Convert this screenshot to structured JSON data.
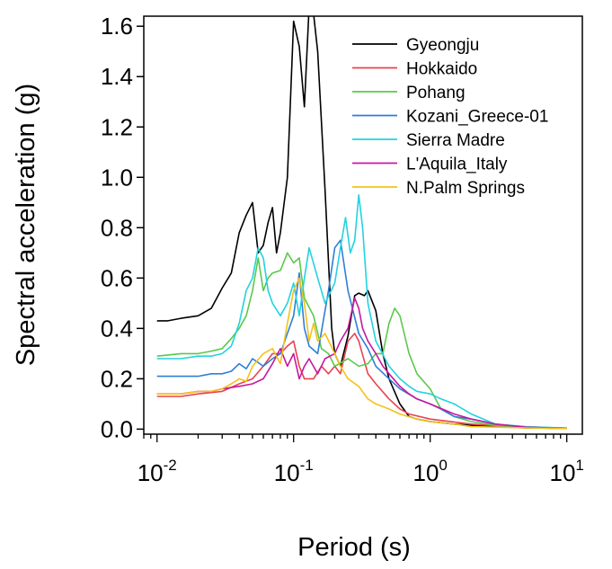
{
  "chart_data": {
    "type": "line",
    "xlabel": "Period (s)",
    "ylabel": "Spectral acceleration (g)",
    "x_scale": "log",
    "xlim": [
      0.008,
      13
    ],
    "ylim": [
      -0.02,
      1.64
    ],
    "x_ticks": [
      {
        "base": "10",
        "exp": "-2",
        "value": 0.01
      },
      {
        "base": "10",
        "exp": "-1",
        "value": 0.1
      },
      {
        "base": "10",
        "exp": "0",
        "value": 1
      },
      {
        "base": "10",
        "exp": "1",
        "value": 10
      }
    ],
    "y_ticks": [
      "0.0",
      "0.2",
      "0.4",
      "0.6",
      "0.8",
      "1.0",
      "1.2",
      "1.4",
      "1.6"
    ],
    "grid": false,
    "legend_position": "top-right",
    "series": [
      {
        "name": "Gyeongju",
        "color": "#000000",
        "points": [
          [
            0.01,
            0.43
          ],
          [
            0.012,
            0.43
          ],
          [
            0.015,
            0.44
          ],
          [
            0.02,
            0.45
          ],
          [
            0.025,
            0.48
          ],
          [
            0.03,
            0.56
          ],
          [
            0.035,
            0.62
          ],
          [
            0.04,
            0.78
          ],
          [
            0.045,
            0.85
          ],
          [
            0.05,
            0.9
          ],
          [
            0.055,
            0.7
          ],
          [
            0.06,
            0.73
          ],
          [
            0.065,
            0.82
          ],
          [
            0.07,
            0.88
          ],
          [
            0.075,
            0.7
          ],
          [
            0.08,
            0.78
          ],
          [
            0.09,
            1.0
          ],
          [
            0.1,
            1.62
          ],
          [
            0.11,
            1.52
          ],
          [
            0.12,
            1.28
          ],
          [
            0.13,
            1.68
          ],
          [
            0.14,
            1.65
          ],
          [
            0.15,
            1.5
          ],
          [
            0.17,
            0.95
          ],
          [
            0.19,
            0.4
          ],
          [
            0.2,
            0.3
          ],
          [
            0.22,
            0.25
          ],
          [
            0.25,
            0.37
          ],
          [
            0.28,
            0.53
          ],
          [
            0.3,
            0.54
          ],
          [
            0.33,
            0.53
          ],
          [
            0.35,
            0.55
          ],
          [
            0.4,
            0.47
          ],
          [
            0.45,
            0.3
          ],
          [
            0.5,
            0.2
          ],
          [
            0.6,
            0.1
          ],
          [
            0.7,
            0.05
          ],
          [
            0.8,
            0.04
          ],
          [
            1.0,
            0.03
          ],
          [
            1.5,
            0.02
          ],
          [
            2.0,
            0.015
          ],
          [
            3.0,
            0.01
          ],
          [
            5.0,
            0.005
          ],
          [
            10.0,
            0.003
          ]
        ]
      },
      {
        "name": "Hokkaido",
        "color": "#e8424f",
        "points": [
          [
            0.01,
            0.13
          ],
          [
            0.015,
            0.13
          ],
          [
            0.02,
            0.14
          ],
          [
            0.03,
            0.15
          ],
          [
            0.04,
            0.18
          ],
          [
            0.05,
            0.2
          ],
          [
            0.06,
            0.25
          ],
          [
            0.07,
            0.3
          ],
          [
            0.08,
            0.3
          ],
          [
            0.09,
            0.33
          ],
          [
            0.1,
            0.35
          ],
          [
            0.11,
            0.25
          ],
          [
            0.12,
            0.2
          ],
          [
            0.14,
            0.2
          ],
          [
            0.16,
            0.25
          ],
          [
            0.18,
            0.22
          ],
          [
            0.2,
            0.25
          ],
          [
            0.22,
            0.22
          ],
          [
            0.25,
            0.35
          ],
          [
            0.28,
            0.38
          ],
          [
            0.3,
            0.35
          ],
          [
            0.35,
            0.22
          ],
          [
            0.4,
            0.18
          ],
          [
            0.5,
            0.12
          ],
          [
            0.6,
            0.08
          ],
          [
            0.7,
            0.06
          ],
          [
            1.0,
            0.04
          ],
          [
            2.0,
            0.02
          ],
          [
            5.0,
            0.005
          ],
          [
            10.0,
            0.003
          ]
        ]
      },
      {
        "name": "Pohang",
        "color": "#5cc84c",
        "points": [
          [
            0.01,
            0.29
          ],
          [
            0.015,
            0.3
          ],
          [
            0.02,
            0.3
          ],
          [
            0.025,
            0.31
          ],
          [
            0.03,
            0.32
          ],
          [
            0.035,
            0.36
          ],
          [
            0.04,
            0.4
          ],
          [
            0.045,
            0.45
          ],
          [
            0.05,
            0.55
          ],
          [
            0.055,
            0.68
          ],
          [
            0.06,
            0.55
          ],
          [
            0.065,
            0.6
          ],
          [
            0.07,
            0.62
          ],
          [
            0.08,
            0.63
          ],
          [
            0.09,
            0.7
          ],
          [
            0.1,
            0.66
          ],
          [
            0.11,
            0.68
          ],
          [
            0.12,
            0.52
          ],
          [
            0.14,
            0.45
          ],
          [
            0.16,
            0.32
          ],
          [
            0.18,
            0.3
          ],
          [
            0.2,
            0.25
          ],
          [
            0.25,
            0.28
          ],
          [
            0.3,
            0.25
          ],
          [
            0.35,
            0.26
          ],
          [
            0.4,
            0.3
          ],
          [
            0.45,
            0.3
          ],
          [
            0.5,
            0.42
          ],
          [
            0.55,
            0.48
          ],
          [
            0.6,
            0.45
          ],
          [
            0.7,
            0.3
          ],
          [
            0.8,
            0.22
          ],
          [
            1.0,
            0.16
          ],
          [
            1.2,
            0.08
          ],
          [
            1.5,
            0.05
          ],
          [
            2.0,
            0.03
          ],
          [
            3.0,
            0.015
          ],
          [
            5.0,
            0.008
          ],
          [
            10.0,
            0.004
          ]
        ]
      },
      {
        "name": "Kozani_Greece-01",
        "color": "#2d7fd6",
        "points": [
          [
            0.01,
            0.21
          ],
          [
            0.015,
            0.21
          ],
          [
            0.02,
            0.21
          ],
          [
            0.025,
            0.22
          ],
          [
            0.03,
            0.22
          ],
          [
            0.035,
            0.23
          ],
          [
            0.04,
            0.26
          ],
          [
            0.045,
            0.24
          ],
          [
            0.05,
            0.28
          ],
          [
            0.06,
            0.25
          ],
          [
            0.07,
            0.28
          ],
          [
            0.08,
            0.3
          ],
          [
            0.09,
            0.38
          ],
          [
            0.1,
            0.45
          ],
          [
            0.11,
            0.62
          ],
          [
            0.12,
            0.4
          ],
          [
            0.13,
            0.33
          ],
          [
            0.15,
            0.3
          ],
          [
            0.18,
            0.55
          ],
          [
            0.2,
            0.72
          ],
          [
            0.22,
            0.75
          ],
          [
            0.25,
            0.55
          ],
          [
            0.3,
            0.38
          ],
          [
            0.35,
            0.32
          ],
          [
            0.4,
            0.25
          ],
          [
            0.5,
            0.2
          ],
          [
            0.6,
            0.16
          ],
          [
            0.8,
            0.12
          ],
          [
            1.0,
            0.1
          ],
          [
            1.2,
            0.08
          ],
          [
            1.5,
            0.05
          ],
          [
            2.0,
            0.04
          ],
          [
            3.0,
            0.02
          ],
          [
            5.0,
            0.008
          ],
          [
            10.0,
            0.004
          ]
        ]
      },
      {
        "name": "Sierra Madre",
        "color": "#22d3e0",
        "points": [
          [
            0.01,
            0.28
          ],
          [
            0.015,
            0.28
          ],
          [
            0.02,
            0.29
          ],
          [
            0.025,
            0.29
          ],
          [
            0.03,
            0.3
          ],
          [
            0.035,
            0.33
          ],
          [
            0.04,
            0.42
          ],
          [
            0.045,
            0.55
          ],
          [
            0.05,
            0.6
          ],
          [
            0.055,
            0.72
          ],
          [
            0.06,
            0.68
          ],
          [
            0.065,
            0.55
          ],
          [
            0.07,
            0.5
          ],
          [
            0.08,
            0.45
          ],
          [
            0.09,
            0.5
          ],
          [
            0.1,
            0.58
          ],
          [
            0.11,
            0.45
          ],
          [
            0.12,
            0.6
          ],
          [
            0.13,
            0.72
          ],
          [
            0.15,
            0.6
          ],
          [
            0.17,
            0.5
          ],
          [
            0.2,
            0.58
          ],
          [
            0.22,
            0.72
          ],
          [
            0.24,
            0.84
          ],
          [
            0.26,
            0.7
          ],
          [
            0.28,
            0.75
          ],
          [
            0.3,
            0.93
          ],
          [
            0.32,
            0.8
          ],
          [
            0.35,
            0.5
          ],
          [
            0.4,
            0.35
          ],
          [
            0.5,
            0.25
          ],
          [
            0.6,
            0.2
          ],
          [
            0.7,
            0.17
          ],
          [
            0.8,
            0.15
          ],
          [
            1.0,
            0.14
          ],
          [
            1.2,
            0.12
          ],
          [
            1.5,
            0.1
          ],
          [
            2.0,
            0.06
          ],
          [
            3.0,
            0.02
          ],
          [
            5.0,
            0.01
          ],
          [
            10.0,
            0.004
          ]
        ]
      },
      {
        "name": "L'Aquila_Italy",
        "color": "#c8189e",
        "points": [
          [
            0.01,
            0.14
          ],
          [
            0.015,
            0.14
          ],
          [
            0.02,
            0.15
          ],
          [
            0.025,
            0.15
          ],
          [
            0.03,
            0.16
          ],
          [
            0.04,
            0.17
          ],
          [
            0.05,
            0.18
          ],
          [
            0.06,
            0.2
          ],
          [
            0.07,
            0.26
          ],
          [
            0.08,
            0.32
          ],
          [
            0.09,
            0.25
          ],
          [
            0.1,
            0.3
          ],
          [
            0.11,
            0.2
          ],
          [
            0.12,
            0.25
          ],
          [
            0.13,
            0.28
          ],
          [
            0.15,
            0.22
          ],
          [
            0.17,
            0.28
          ],
          [
            0.2,
            0.3
          ],
          [
            0.22,
            0.35
          ],
          [
            0.25,
            0.4
          ],
          [
            0.28,
            0.52
          ],
          [
            0.3,
            0.48
          ],
          [
            0.32,
            0.4
          ],
          [
            0.35,
            0.35
          ],
          [
            0.4,
            0.3
          ],
          [
            0.45,
            0.25
          ],
          [
            0.5,
            0.22
          ],
          [
            0.6,
            0.17
          ],
          [
            0.7,
            0.14
          ],
          [
            0.8,
            0.12
          ],
          [
            1.0,
            0.1
          ],
          [
            1.5,
            0.06
          ],
          [
            2.0,
            0.04
          ],
          [
            3.0,
            0.02
          ],
          [
            5.0,
            0.008
          ],
          [
            10.0,
            0.003
          ]
        ]
      },
      {
        "name": "N.Palm Springs",
        "color": "#f2c21a",
        "points": [
          [
            0.01,
            0.14
          ],
          [
            0.015,
            0.14
          ],
          [
            0.02,
            0.15
          ],
          [
            0.025,
            0.15
          ],
          [
            0.03,
            0.16
          ],
          [
            0.035,
            0.18
          ],
          [
            0.04,
            0.2
          ],
          [
            0.045,
            0.19
          ],
          [
            0.05,
            0.25
          ],
          [
            0.06,
            0.3
          ],
          [
            0.07,
            0.32
          ],
          [
            0.08,
            0.26
          ],
          [
            0.09,
            0.42
          ],
          [
            0.1,
            0.55
          ],
          [
            0.11,
            0.6
          ],
          [
            0.12,
            0.5
          ],
          [
            0.13,
            0.35
          ],
          [
            0.14,
            0.42
          ],
          [
            0.15,
            0.35
          ],
          [
            0.17,
            0.38
          ],
          [
            0.2,
            0.3
          ],
          [
            0.22,
            0.25
          ],
          [
            0.25,
            0.2
          ],
          [
            0.3,
            0.17
          ],
          [
            0.35,
            0.12
          ],
          [
            0.4,
            0.1
          ],
          [
            0.5,
            0.08
          ],
          [
            0.6,
            0.06
          ],
          [
            0.8,
            0.04
          ],
          [
            1.0,
            0.03
          ],
          [
            1.5,
            0.02
          ],
          [
            2.0,
            0.01
          ],
          [
            5.0,
            0.005
          ],
          [
            10.0,
            0.002
          ]
        ]
      }
    ]
  }
}
